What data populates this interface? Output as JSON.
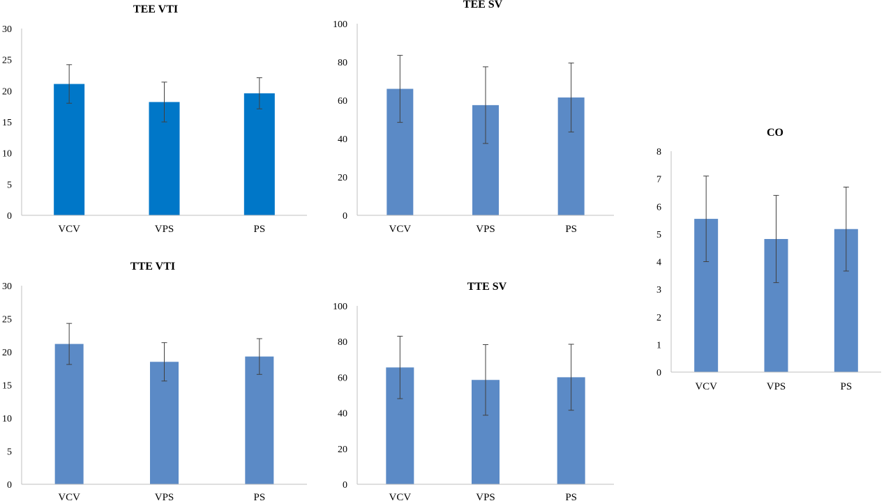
{
  "colors": {
    "dark_blue": "#0077C8",
    "steel_blue": "#5B8AC6",
    "axis": "#BFBFBF",
    "error_bar": "#404040"
  },
  "chart_data": [
    {
      "type": "bar",
      "title": "TEE VTI",
      "categories": [
        "VCV",
        "VPS",
        "PS"
      ],
      "values": [
        21.1,
        18.2,
        19.6
      ],
      "errors": [
        3.1,
        3.2,
        2.5
      ],
      "ylim": [
        0,
        30
      ],
      "yticks": [
        "0",
        "5",
        "10",
        "15",
        "20",
        "25",
        "30"
      ],
      "ystep": 5,
      "color": "#0077C8",
      "grid": false,
      "legend": "none"
    },
    {
      "type": "bar",
      "title": "TEE SV",
      "categories": [
        "VCV",
        "VPS",
        "PS"
      ],
      "values": [
        66,
        57.5,
        61.5
      ],
      "errors": [
        17.5,
        20,
        18
      ],
      "ylim": [
        0,
        100
      ],
      "yticks": [
        "0",
        "20",
        "40",
        "60",
        "80",
        "100"
      ],
      "ystep": 20,
      "color": "#5B8AC6",
      "grid": false,
      "legend": "none"
    },
    {
      "type": "bar",
      "title": "CO",
      "categories": [
        "VCV",
        "VPS",
        "PS"
      ],
      "values": [
        5.55,
        4.82,
        5.18
      ],
      "errors": [
        1.55,
        1.58,
        1.52
      ],
      "ylim": [
        0,
        8
      ],
      "yticks": [
        "0",
        "1",
        "2",
        "3",
        "4",
        "5",
        "6",
        "7",
        "8"
      ],
      "ystep": 1,
      "color": "#5B8AC6",
      "grid": false,
      "legend": "none"
    },
    {
      "type": "bar",
      "title": "TTE VTI",
      "categories": [
        "VCV",
        "VPS",
        "PS"
      ],
      "values": [
        21.2,
        18.5,
        19.3
      ],
      "errors": [
        3.1,
        2.9,
        2.7
      ],
      "ylim": [
        0,
        30
      ],
      "yticks": [
        "0",
        "5",
        "10",
        "15",
        "20",
        "25",
        "30"
      ],
      "ystep": 5,
      "color": "#5B8AC6",
      "grid": false,
      "legend": "none"
    },
    {
      "type": "bar",
      "title": "TTE SV",
      "categories": [
        "VCV",
        "VPS",
        "PS"
      ],
      "values": [
        65.5,
        58.5,
        60
      ],
      "errors": [
        17.5,
        19.8,
        18.5
      ],
      "ylim": [
        0,
        100
      ],
      "yticks": [
        "0",
        "20",
        "40",
        "60",
        "80",
        "100"
      ],
      "ystep": 20,
      "color": "#5B8AC6",
      "grid": false,
      "legend": "none"
    }
  ]
}
